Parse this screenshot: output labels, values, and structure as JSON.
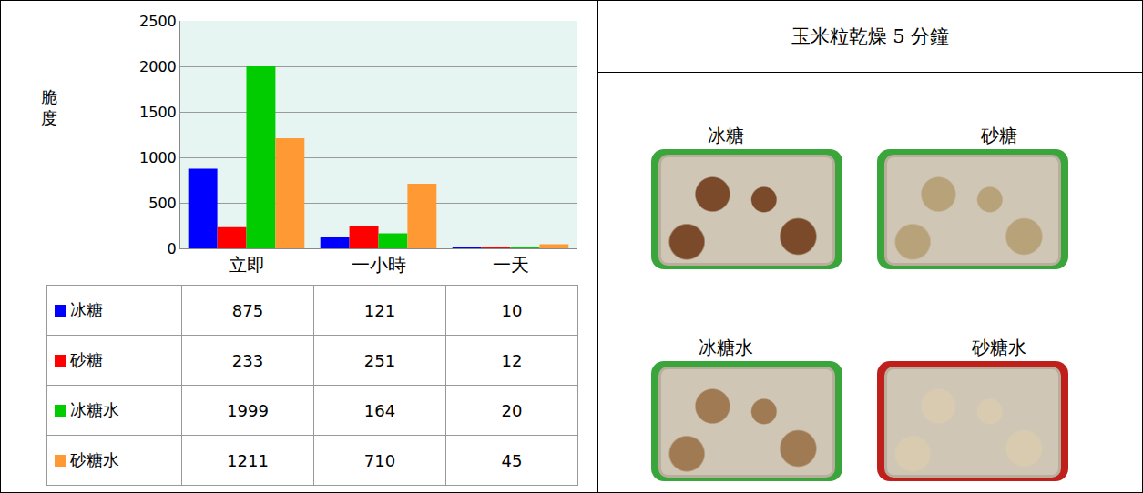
{
  "chart_data": {
    "type": "bar",
    "y_label": "脆度",
    "categories": [
      "立即",
      "一小時",
      "一天"
    ],
    "series": [
      {
        "name": "冰糖",
        "color": "#0000ff",
        "values": [
          875,
          121,
          10
        ]
      },
      {
        "name": "砂糖",
        "color": "#ff0000",
        "values": [
          233,
          251,
          12
        ]
      },
      {
        "name": "冰糖水",
        "color": "#00cc00",
        "values": [
          1999,
          164,
          20
        ]
      },
      {
        "name": "砂糖水",
        "color": "#ff9933",
        "values": [
          1211,
          710,
          45
        ]
      }
    ],
    "ylim": [
      0,
      2500
    ],
    "yticks": [
      0,
      500,
      1000,
      1500,
      2000,
      2500
    ],
    "grid": true
  },
  "panel": {
    "title": "玉米粒乾燥 5 分鐘",
    "photos": [
      {
        "label": "冰糖"
      },
      {
        "label": "砂糖"
      },
      {
        "label": "冰糖水"
      },
      {
        "label": "砂糖水"
      }
    ]
  }
}
